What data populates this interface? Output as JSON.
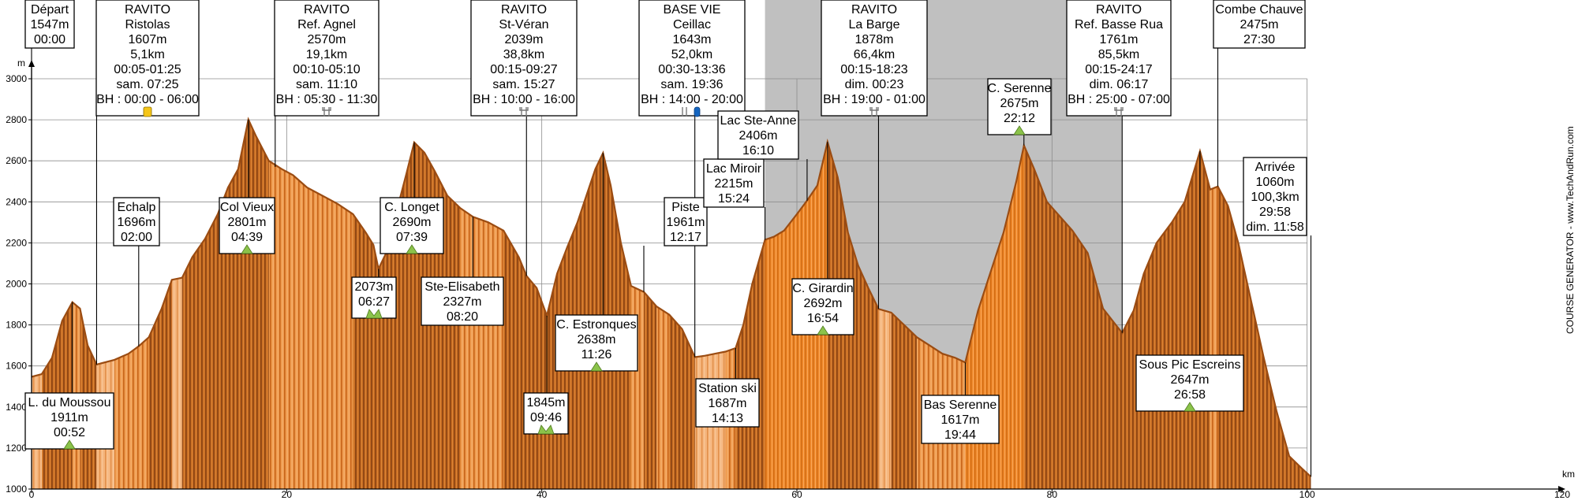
{
  "chart_data": {
    "type": "area",
    "xlabel": "km",
    "ylabel": "m",
    "xlim": [
      0,
      120
    ],
    "ylim": [
      1000,
      3000
    ],
    "x_ticks": [
      0,
      20,
      40,
      60,
      80,
      100,
      120
    ],
    "y_ticks": [
      1000,
      1200,
      1400,
      1600,
      1800,
      2000,
      2200,
      2400,
      2600,
      2800,
      3000
    ],
    "shaded_range_km": [
      57.5,
      85.5
    ],
    "credit": "COURSE GENERATOR - www.TechAndRun.com",
    "profile": [
      [
        0,
        1547
      ],
      [
        0.8,
        1560
      ],
      [
        1.6,
        1640
      ],
      [
        2.4,
        1820
      ],
      [
        3.2,
        1911
      ],
      [
        3.8,
        1880
      ],
      [
        4.4,
        1700
      ],
      [
        5.1,
        1607
      ],
      [
        6.5,
        1630
      ],
      [
        7.6,
        1660
      ],
      [
        8.4,
        1696
      ],
      [
        9.2,
        1740
      ],
      [
        10.2,
        1880
      ],
      [
        11,
        2020
      ],
      [
        11.8,
        2030
      ],
      [
        12.6,
        2130
      ],
      [
        13.6,
        2220
      ],
      [
        14.6,
        2340
      ],
      [
        15.4,
        2470
      ],
      [
        16.2,
        2560
      ],
      [
        17,
        2801
      ],
      [
        17.6,
        2720
      ],
      [
        18.6,
        2600
      ],
      [
        19.6,
        2560
      ],
      [
        20.5,
        2530
      ],
      [
        21.6,
        2470
      ],
      [
        22.8,
        2430
      ],
      [
        24,
        2390
      ],
      [
        25.2,
        2340
      ],
      [
        26.2,
        2250
      ],
      [
        26.8,
        2190
      ],
      [
        27.2,
        2073
      ],
      [
        27.8,
        2150
      ],
      [
        28.6,
        2350
      ],
      [
        29.4,
        2540
      ],
      [
        30,
        2690
      ],
      [
        30.8,
        2640
      ],
      [
        31.6,
        2550
      ],
      [
        32.6,
        2430
      ],
      [
        33.6,
        2370
      ],
      [
        34.6,
        2327
      ],
      [
        35.8,
        2300
      ],
      [
        37,
        2260
      ],
      [
        38.2,
        2130
      ],
      [
        38.8,
        2039
      ],
      [
        39.6,
        1980
      ],
      [
        40.4,
        1845
      ],
      [
        41.2,
        2050
      ],
      [
        42,
        2180
      ],
      [
        42.8,
        2300
      ],
      [
        43.6,
        2450
      ],
      [
        44.2,
        2560
      ],
      [
        44.8,
        2638
      ],
      [
        45.4,
        2480
      ],
      [
        46.2,
        2200
      ],
      [
        47,
        1990
      ],
      [
        48,
        1961
      ],
      [
        49,
        1890
      ],
      [
        50,
        1850
      ],
      [
        51,
        1780
      ],
      [
        52,
        1643
      ],
      [
        52.8,
        1650
      ],
      [
        53.6,
        1660
      ],
      [
        54.4,
        1670
      ],
      [
        55.2,
        1687
      ],
      [
        55.8,
        1800
      ],
      [
        56.5,
        2000
      ],
      [
        57.5,
        2215
      ],
      [
        58.2,
        2230
      ],
      [
        59,
        2260
      ],
      [
        60,
        2340
      ],
      [
        60.8,
        2406
      ],
      [
        61.6,
        2480
      ],
      [
        62.4,
        2692
      ],
      [
        63.2,
        2520
      ],
      [
        64,
        2250
      ],
      [
        64.8,
        2090
      ],
      [
        65.6,
        1980
      ],
      [
        66.4,
        1878
      ],
      [
        67.4,
        1860
      ],
      [
        68.4,
        1800
      ],
      [
        69.4,
        1740
      ],
      [
        70.4,
        1700
      ],
      [
        71.4,
        1660
      ],
      [
        72.4,
        1640
      ],
      [
        73.2,
        1617
      ],
      [
        74.2,
        1870
      ],
      [
        75.2,
        2060
      ],
      [
        76.2,
        2250
      ],
      [
        77.2,
        2500
      ],
      [
        77.8,
        2675
      ],
      [
        78.6,
        2560
      ],
      [
        79.6,
        2400
      ],
      [
        80.6,
        2330
      ],
      [
        81.6,
        2260
      ],
      [
        82.8,
        2150
      ],
      [
        84,
        1880
      ],
      [
        85,
        1800
      ],
      [
        85.5,
        1761
      ],
      [
        86.4,
        1870
      ],
      [
        87.2,
        2050
      ],
      [
        88.2,
        2200
      ],
      [
        89.4,
        2300
      ],
      [
        90.4,
        2400
      ],
      [
        91.6,
        2647
      ],
      [
        92.4,
        2460
      ],
      [
        93,
        2475
      ],
      [
        93.8,
        2380
      ],
      [
        94.6,
        2200
      ],
      [
        95.6,
        1920
      ],
      [
        96.6,
        1640
      ],
      [
        97.6,
        1380
      ],
      [
        98.6,
        1160
      ],
      [
        99.6,
        1100
      ],
      [
        100.3,
        1060
      ]
    ],
    "points": [
      {
        "km": 0,
        "alt": 1547,
        "lines": [
          "Départ",
          "1547m",
          "00:00"
        ],
        "box": "top"
      },
      {
        "km": 5.1,
        "alt": 1607,
        "lines": [
          "RAVITO",
          "Ristolas",
          "1607m",
          "5,1km",
          "00:05-01:25",
          "sam. 07:25",
          "BH : 00:00 - 06:00"
        ],
        "box": "top",
        "icon": "drink"
      },
      {
        "km": 19.1,
        "alt": 2570,
        "lines": [
          "RAVITO",
          "Ref. Agnel",
          "2570m",
          "19,1km",
          "00:10-05:10",
          "sam. 11:10",
          "BH : 05:30 - 11:30"
        ],
        "box": "top",
        "icon": "food"
      },
      {
        "km": 38.8,
        "alt": 2039,
        "lines": [
          "RAVITO",
          "St-Véran",
          "2039m",
          "38,8km",
          "00:15-09:27",
          "sam. 15:27",
          "BH : 10:00 - 16:00"
        ],
        "box": "top",
        "icon": "food"
      },
      {
        "km": 52.0,
        "alt": 1643,
        "lines": [
          "BASE VIE",
          "Ceillac",
          "1643m",
          "52,0km",
          "00:30-13:36",
          "sam. 19:36",
          "BH : 14:00 - 20:00"
        ],
        "box": "top",
        "icon": "base"
      },
      {
        "km": 66.4,
        "alt": 1878,
        "lines": [
          "RAVITO",
          "La Barge",
          "1878m",
          "66,4km",
          "00:15-18:23",
          "dim. 00:23",
          "BH : 19:00 - 01:00"
        ],
        "box": "top",
        "icon": "food"
      },
      {
        "km": 85.5,
        "alt": 1761,
        "lines": [
          "RAVITO",
          "Ref. Basse Rua",
          "1761m",
          "85,5km",
          "00:15-24:17",
          "dim. 06:17",
          "BH : 25:00 - 07:00"
        ],
        "box": "top",
        "icon": "food"
      },
      {
        "km": 93,
        "alt": 2475,
        "lines": [
          "Combe Chauve",
          "2475m",
          "27:30"
        ],
        "box": "top"
      },
      {
        "km": 3.2,
        "alt": 1911,
        "lines": [
          "L. du Moussou",
          "1911m",
          "00:52"
        ],
        "box": "below",
        "icon": "summit"
      },
      {
        "km": 8.4,
        "alt": 1696,
        "lines": [
          "Echalp",
          "1696m",
          "02:00"
        ],
        "box": "above"
      },
      {
        "km": 17,
        "alt": 2801,
        "lines": [
          "Col Vieux",
          "2801m",
          "04:39"
        ],
        "box": "below",
        "icon": "summit"
      },
      {
        "km": 27.2,
        "alt": 2073,
        "lines": [
          "2073m",
          "06:27"
        ],
        "box": "below",
        "icon": "pass"
      },
      {
        "km": 30,
        "alt": 2690,
        "lines": [
          "C. Longet",
          "2690m",
          "07:39"
        ],
        "box": "below",
        "icon": "summit"
      },
      {
        "km": 34.6,
        "alt": 2327,
        "lines": [
          "Ste-Elisabeth",
          "2327m",
          "08:20"
        ],
        "box": "below"
      },
      {
        "km": 40.4,
        "alt": 1845,
        "lines": [
          "1845m",
          "09:46"
        ],
        "box": "below",
        "icon": "pass"
      },
      {
        "km": 44.8,
        "alt": 2638,
        "lines": [
          "C. Estronques",
          "2638m",
          "11:26"
        ],
        "box": "below",
        "icon": "summit"
      },
      {
        "km": 48,
        "alt": 1961,
        "lines": [
          "Piste",
          "1961m",
          "12:17"
        ],
        "box": "above"
      },
      {
        "km": 55.2,
        "alt": 1687,
        "lines": [
          "Station ski",
          "1687m",
          "14:13"
        ],
        "box": "below"
      },
      {
        "km": 57.5,
        "alt": 2215,
        "lines": [
          "Lac Miroir",
          "2215m",
          "15:24"
        ],
        "box": "above"
      },
      {
        "km": 60.8,
        "alt": 2406,
        "lines": [
          "Lac Ste-Anne",
          "2406m",
          "16:10"
        ],
        "box": "above"
      },
      {
        "km": 62.4,
        "alt": 2692,
        "lines": [
          "C. Girardin",
          "2692m",
          "16:54"
        ],
        "box": "below",
        "icon": "summit"
      },
      {
        "km": 73.2,
        "alt": 1617,
        "lines": [
          "Bas Serenne",
          "1617m",
          "19:44"
        ],
        "box": "below"
      },
      {
        "km": 77.8,
        "alt": 2675,
        "lines": [
          "C. Serenne",
          "2675m",
          "22:12"
        ],
        "box": "above",
        "icon": "summit"
      },
      {
        "km": 91.6,
        "alt": 2647,
        "lines": [
          "Sous Pic Escreins",
          "2647m",
          "26:58"
        ],
        "box": "below",
        "icon": "summit"
      },
      {
        "km": 100.3,
        "alt": 1060,
        "lines": [
          "Arrivée",
          "1060m",
          "100,3km",
          "29:58",
          "dim. 11:58"
        ],
        "box": "above"
      }
    ]
  }
}
